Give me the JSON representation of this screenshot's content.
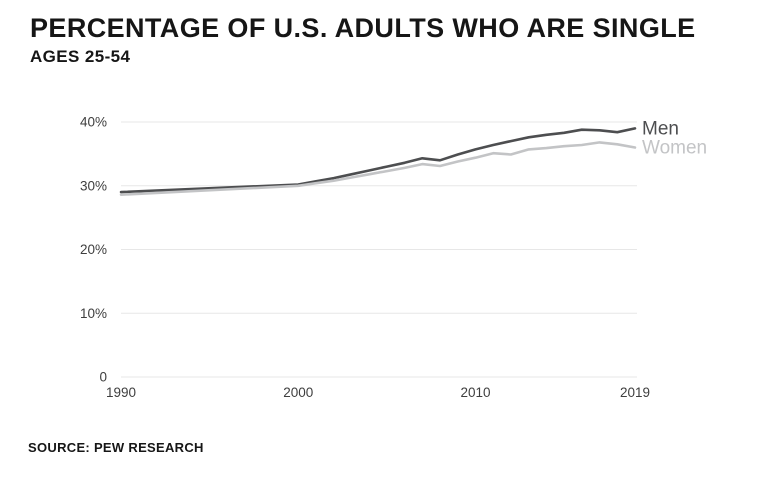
{
  "chart_data": {
    "type": "line",
    "title": "PERCENTAGE OF U.S. ADULTS WHO ARE SINGLE",
    "subtitle": "AGES 25-54",
    "source": "SOURCE: PEW RESEARCH",
    "x": [
      1990,
      2000,
      2001,
      2002,
      2003,
      2004,
      2005,
      2006,
      2007,
      2008,
      2009,
      2010,
      2011,
      2012,
      2013,
      2014,
      2015,
      2016,
      2017,
      2018,
      2019
    ],
    "series": [
      {
        "name": "Men",
        "color": "#4d4e50",
        "values": [
          29.0,
          30.2,
          30.7,
          31.2,
          31.8,
          32.4,
          33.0,
          33.6,
          34.3,
          34.0,
          34.9,
          35.7,
          36.4,
          37.0,
          37.6,
          38.0,
          38.3,
          38.8,
          38.7,
          38.4,
          39.0
        ]
      },
      {
        "name": "Women",
        "color": "#c3c4c6",
        "values": [
          28.6,
          30.0,
          30.4,
          30.8,
          31.3,
          31.8,
          32.3,
          32.8,
          33.4,
          33.1,
          33.8,
          34.4,
          35.1,
          34.9,
          35.7,
          35.9,
          36.2,
          36.4,
          36.8,
          36.5,
          36.0
        ]
      }
    ],
    "xlim": [
      1990,
      2019
    ],
    "ylim": [
      0,
      40
    ],
    "xticks": [
      {
        "value": 1990,
        "label": "1990"
      },
      {
        "value": 2000,
        "label": "2000"
      },
      {
        "value": 2010,
        "label": "2010"
      },
      {
        "value": 2019,
        "label": "2019"
      }
    ],
    "yticks": [
      {
        "value": 0,
        "label": "0"
      },
      {
        "value": 10,
        "label": "10%"
      },
      {
        "value": 20,
        "label": "20%"
      },
      {
        "value": 30,
        "label": "30%"
      },
      {
        "value": 40,
        "label": "40%"
      }
    ],
    "grid": "horizontal-only",
    "legend_position": "right-of-line-ends",
    "colors": {
      "background": "#ffffff",
      "gridline": "#e7e7e7",
      "tick_text": "#3e3e3e",
      "title_text": "#161616"
    }
  }
}
